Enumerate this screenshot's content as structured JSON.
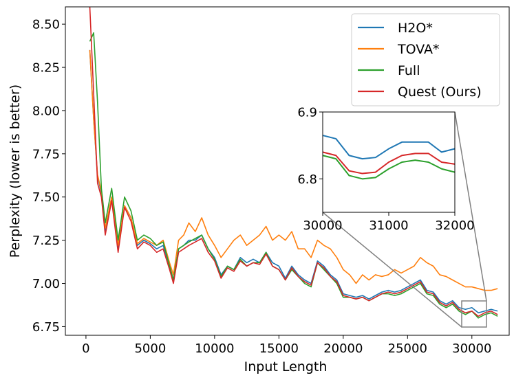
{
  "chart_data": {
    "type": "line",
    "title": "",
    "xlabel": "Input Length",
    "ylabel": "Perplexity (lower is better)",
    "xlim": [
      -1600,
      32900
    ],
    "ylim": [
      6.7,
      8.6
    ],
    "xticks": [
      0,
      5000,
      10000,
      15000,
      20000,
      25000,
      30000
    ],
    "yticks": [
      6.75,
      7.0,
      7.25,
      7.5,
      7.75,
      8.0,
      8.25,
      8.5
    ],
    "ytick_labels": [
      "6.75",
      "7.00",
      "7.25",
      "7.50",
      "7.75",
      "8.00",
      "8.25",
      "8.50"
    ],
    "grid": false,
    "legend": "top-right",
    "series": [
      {
        "name": "H2O*",
        "color": "#1f77b4",
        "x": [
          300,
          600,
          900,
          1200,
          1500,
          2000,
          2500,
          3000,
          3500,
          4000,
          4500,
          5000,
          5500,
          6000,
          6500,
          6800,
          7200,
          7600,
          8000,
          8500,
          9000,
          9500,
          10000,
          10500,
          11000,
          11500,
          12000,
          12500,
          13000,
          13500,
          14000,
          14500,
          15000,
          15500,
          16000,
          16500,
          17000,
          17500,
          18000,
          18500,
          19000,
          19500,
          20000,
          20500,
          21000,
          21500,
          22000,
          22500,
          23000,
          23500,
          24000,
          24500,
          25000,
          25500,
          26000,
          26500,
          27000,
          27500,
          28000,
          28500,
          29000,
          29500,
          30000,
          30500,
          31000,
          31500,
          32000
        ],
        "values": [
          8.35,
          7.95,
          7.62,
          7.52,
          7.3,
          7.5,
          7.2,
          7.45,
          7.38,
          7.22,
          7.25,
          7.23,
          7.2,
          7.22,
          7.1,
          7.02,
          7.2,
          7.22,
          7.25,
          7.25,
          7.28,
          7.2,
          7.15,
          7.05,
          7.1,
          7.08,
          7.15,
          7.12,
          7.14,
          7.12,
          7.18,
          7.12,
          7.1,
          7.03,
          7.1,
          7.05,
          7.02,
          7.0,
          7.13,
          7.1,
          7.05,
          7.02,
          6.94,
          6.93,
          6.92,
          6.93,
          6.91,
          6.93,
          6.95,
          6.96,
          6.95,
          6.96,
          6.98,
          7.0,
          7.02,
          6.96,
          6.95,
          6.9,
          6.88,
          6.9,
          6.86,
          6.85,
          6.86,
          6.83,
          6.84,
          6.85,
          6.84
        ]
      },
      {
        "name": "TOVA*",
        "color": "#ff7f0e",
        "x": [
          300,
          600,
          900,
          1200,
          1500,
          2000,
          2500,
          3000,
          3500,
          4000,
          4500,
          5000,
          5500,
          6000,
          6500,
          6800,
          7200,
          7600,
          8000,
          8500,
          9000,
          9500,
          10000,
          10500,
          11000,
          11500,
          12000,
          12500,
          13000,
          13500,
          14000,
          14500,
          15000,
          15500,
          16000,
          16500,
          17000,
          17500,
          18000,
          18500,
          19000,
          19500,
          20000,
          20500,
          21000,
          21500,
          22000,
          22500,
          23000,
          23500,
          24000,
          24500,
          25000,
          25500,
          26000,
          26500,
          27000,
          27500,
          28000,
          28500,
          29000,
          29500,
          30000,
          30500,
          31000,
          31500,
          32000
        ],
        "values": [
          8.35,
          7.95,
          7.63,
          7.53,
          7.32,
          7.5,
          7.22,
          7.45,
          7.38,
          7.23,
          7.26,
          7.24,
          7.22,
          7.25,
          7.12,
          7.05,
          7.25,
          7.28,
          7.35,
          7.3,
          7.38,
          7.28,
          7.22,
          7.15,
          7.2,
          7.25,
          7.28,
          7.22,
          7.25,
          7.28,
          7.33,
          7.25,
          7.28,
          7.25,
          7.3,
          7.2,
          7.2,
          7.15,
          7.25,
          7.22,
          7.2,
          7.15,
          7.08,
          7.05,
          7.0,
          7.05,
          7.02,
          7.05,
          7.04,
          7.05,
          7.08,
          7.06,
          7.08,
          7.1,
          7.15,
          7.12,
          7.1,
          7.05,
          7.04,
          7.02,
          7.0,
          6.98,
          6.98,
          6.97,
          6.96,
          6.96,
          6.97
        ]
      },
      {
        "name": "Full",
        "color": "#2ca02c",
        "x": [
          300,
          600,
          900,
          1200,
          1500,
          2000,
          2500,
          3000,
          3500,
          4000,
          4500,
          5000,
          5500,
          6000,
          6500,
          6800,
          7200,
          7600,
          8000,
          8500,
          9000,
          9500,
          10000,
          10500,
          11000,
          11500,
          12000,
          12500,
          13000,
          13500,
          14000,
          14500,
          15000,
          15500,
          16000,
          16500,
          17000,
          17500,
          18000,
          18500,
          19000,
          19500,
          20000,
          20500,
          21000,
          21500,
          22000,
          22500,
          23000,
          23500,
          24000,
          24500,
          25000,
          25500,
          26000,
          26500,
          27000,
          27500,
          28000,
          28500,
          29000,
          29500,
          30000,
          30500,
          31000,
          31500,
          32000
        ],
        "values": [
          8.4,
          8.45,
          8.05,
          7.55,
          7.35,
          7.55,
          7.25,
          7.5,
          7.42,
          7.25,
          7.28,
          7.26,
          7.22,
          7.24,
          7.1,
          7.02,
          7.2,
          7.22,
          7.24,
          7.26,
          7.28,
          7.2,
          7.14,
          7.04,
          7.1,
          7.08,
          7.14,
          7.1,
          7.12,
          7.12,
          7.18,
          7.1,
          7.08,
          7.02,
          7.08,
          7.04,
          7.0,
          6.98,
          7.12,
          7.08,
          7.04,
          7.0,
          6.92,
          6.92,
          6.91,
          6.92,
          6.9,
          6.92,
          6.94,
          6.94,
          6.93,
          6.94,
          6.96,
          6.98,
          7.0,
          6.94,
          6.93,
          6.88,
          6.86,
          6.88,
          6.84,
          6.82,
          6.84,
          6.8,
          6.82,
          6.83,
          6.81
        ]
      },
      {
        "name": "Quest (Ours)",
        "color": "#d62728",
        "x": [
          300,
          600,
          900,
          1200,
          1500,
          2000,
          2500,
          3000,
          3500,
          4000,
          4500,
          5000,
          5500,
          6000,
          6500,
          6800,
          7200,
          7600,
          8000,
          8500,
          9000,
          9500,
          10000,
          10500,
          11000,
          11500,
          12000,
          12500,
          13000,
          13500,
          14000,
          14500,
          15000,
          15500,
          16000,
          16500,
          17000,
          17500,
          18000,
          18500,
          19000,
          19500,
          20000,
          20500,
          21000,
          21500,
          22000,
          22500,
          23000,
          23500,
          24000,
          24500,
          25000,
          25500,
          26000,
          26500,
          27000,
          27500,
          28000,
          28500,
          29000,
          29500,
          30000,
          30500,
          31000,
          31500,
          32000
        ],
        "values": [
          8.6,
          8.1,
          7.58,
          7.5,
          7.28,
          7.48,
          7.18,
          7.44,
          7.36,
          7.2,
          7.24,
          7.22,
          7.18,
          7.2,
          7.08,
          7.0,
          7.18,
          7.2,
          7.22,
          7.24,
          7.26,
          7.18,
          7.13,
          7.03,
          7.09,
          7.07,
          7.13,
          7.1,
          7.12,
          7.11,
          7.17,
          7.1,
          7.08,
          7.02,
          7.09,
          7.04,
          7.01,
          6.99,
          7.12,
          7.09,
          7.04,
          7.01,
          6.93,
          6.92,
          6.91,
          6.92,
          6.9,
          6.92,
          6.94,
          6.95,
          6.94,
          6.95,
          6.97,
          6.99,
          7.01,
          6.95,
          6.94,
          6.89,
          6.87,
          6.89,
          6.85,
          6.83,
          6.84,
          6.81,
          6.83,
          6.84,
          6.82
        ]
      }
    ],
    "inset": {
      "xlim": [
        30000,
        32000
      ],
      "ylim": [
        6.75,
        6.9
      ],
      "xticks": [
        30000,
        31000,
        32000
      ],
      "yticks": [
        6.8,
        6.9
      ],
      "ytick_labels": [
        "6.8",
        "6.9"
      ],
      "series": [
        {
          "name": "H2O*",
          "color": "#1f77b4",
          "x": [
            30000,
            30200,
            30400,
            30600,
            30800,
            31000,
            31200,
            31400,
            31600,
            31800,
            32000
          ],
          "values": [
            6.865,
            6.86,
            6.835,
            6.83,
            6.832,
            6.845,
            6.855,
            6.855,
            6.855,
            6.84,
            6.845
          ]
        },
        {
          "name": "TOVA*",
          "color": "#ff7f0e",
          "x": [],
          "values": []
        },
        {
          "name": "Full",
          "color": "#2ca02c",
          "x": [
            30000,
            30200,
            30400,
            30600,
            30800,
            31000,
            31200,
            31400,
            31600,
            31800,
            32000
          ],
          "values": [
            6.835,
            6.83,
            6.805,
            6.8,
            6.802,
            6.815,
            6.825,
            6.828,
            6.825,
            6.815,
            6.81
          ]
        },
        {
          "name": "Quest (Ours)",
          "color": "#d62728",
          "x": [
            30000,
            30200,
            30400,
            30600,
            30800,
            31000,
            31200,
            31400,
            31600,
            31800,
            32000
          ],
          "values": [
            6.84,
            6.835,
            6.812,
            6.808,
            6.81,
            6.825,
            6.835,
            6.838,
            6.838,
            6.825,
            6.822
          ]
        }
      ]
    }
  }
}
